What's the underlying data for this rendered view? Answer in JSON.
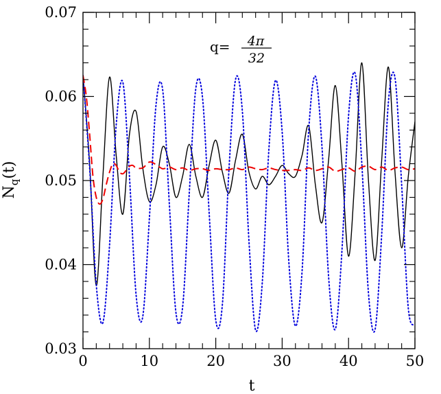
{
  "chart_data": {
    "type": "line",
    "xlabel": "t",
    "ylabel": {
      "base": "N",
      "subscript": "q",
      "suffix": "(t)"
    },
    "annotation": {
      "lhs": "q=",
      "numerator": "4π",
      "denominator": "32"
    },
    "xlim": [
      0,
      50
    ],
    "ylim": [
      0.03,
      0.07
    ],
    "x_ticks": [
      0,
      10,
      20,
      30,
      40,
      50
    ],
    "x_tick_labels": [
      "0",
      "10",
      "20",
      "30",
      "40",
      "50"
    ],
    "y_ticks": [
      0.03,
      0.04,
      0.05,
      0.06,
      0.07
    ],
    "y_tick_labels": [
      "0.03",
      "0.04",
      "0.05",
      "0.06",
      "0.07"
    ],
    "x_minor_step": 2,
    "y_minor_step": 0.002,
    "grid": false,
    "series": [
      {
        "style": "solid",
        "color": "#000000",
        "x": [
          0,
          1,
          2,
          3,
          4,
          5,
          6,
          7,
          8,
          9,
          10,
          11,
          12,
          13,
          14,
          15,
          16,
          17,
          18,
          19,
          20,
          21,
          22,
          23,
          24,
          25,
          26,
          27,
          28,
          29,
          30,
          31,
          32,
          33,
          34,
          35,
          36,
          37,
          38,
          39,
          40,
          41,
          42,
          43,
          44,
          45,
          46,
          47,
          48,
          49,
          50
        ],
        "y": [
          0.0625,
          0.052,
          0.0375,
          0.0505,
          0.0623,
          0.053,
          0.046,
          0.0555,
          0.0582,
          0.0515,
          0.0475,
          0.0495,
          0.054,
          0.052,
          0.048,
          0.0505,
          0.0543,
          0.0505,
          0.048,
          0.0518,
          0.0548,
          0.051,
          0.0485,
          0.0525,
          0.0555,
          0.051,
          0.049,
          0.0505,
          0.0495,
          0.0505,
          0.0518,
          0.0508,
          0.0505,
          0.053,
          0.0565,
          0.0495,
          0.045,
          0.0525,
          0.0613,
          0.052,
          0.041,
          0.051,
          0.064,
          0.05,
          0.0405,
          0.0525,
          0.0635,
          0.051,
          0.042,
          0.0505,
          0.057
        ]
      },
      {
        "style": "dotted",
        "color": "#0000dd",
        "x": [
          0,
          1,
          2,
          3,
          4,
          5,
          6,
          7,
          8,
          9,
          10,
          11,
          12,
          13,
          14,
          15,
          16,
          17,
          18,
          19,
          20,
          21,
          22,
          23,
          24,
          25,
          26,
          27,
          28,
          29,
          30,
          31,
          32,
          33,
          34,
          35,
          36,
          37,
          38,
          39,
          40,
          41,
          42,
          43,
          44,
          45,
          46,
          47,
          48,
          49,
          50
        ],
        "y": [
          0.0625,
          0.0516,
          0.0376,
          0.0331,
          0.0423,
          0.0566,
          0.0617,
          0.0505,
          0.0364,
          0.0338,
          0.0455,
          0.059,
          0.0608,
          0.0473,
          0.0343,
          0.0349,
          0.0484,
          0.061,
          0.0599,
          0.0462,
          0.0334,
          0.0353,
          0.0515,
          0.0621,
          0.0583,
          0.0428,
          0.0322,
          0.0378,
          0.0537,
          0.0619,
          0.0558,
          0.0404,
          0.0327,
          0.0392,
          0.056,
          0.0624,
          0.054,
          0.0385,
          0.0323,
          0.0416,
          0.0577,
          0.0627,
          0.052,
          0.0366,
          0.0323,
          0.0437,
          0.0593,
          0.0622,
          0.0495,
          0.0348,
          0.0328
        ]
      },
      {
        "style": "dashed",
        "color": "#ee0000",
        "x": [
          0,
          0.5,
          1,
          1.5,
          2,
          2.5,
          3,
          3.5,
          4,
          4.5,
          5,
          5.5,
          6,
          6.5,
          7,
          7.5,
          8,
          9,
          10,
          11,
          12,
          13,
          14,
          15,
          16,
          17,
          18,
          19,
          20,
          21,
          22,
          23,
          24,
          25,
          26,
          27,
          28,
          29,
          30,
          31,
          32,
          33,
          34,
          35,
          36,
          37,
          38,
          39,
          40,
          41,
          42,
          43,
          44,
          45,
          46,
          47,
          48,
          49,
          50
        ],
        "y": [
          0.0625,
          0.06,
          0.0555,
          0.0505,
          0.048,
          0.0472,
          0.0478,
          0.0495,
          0.051,
          0.052,
          0.0518,
          0.051,
          0.0508,
          0.0512,
          0.0517,
          0.0518,
          0.0515,
          0.0515,
          0.0522,
          0.0519,
          0.0514,
          0.0516,
          0.0513,
          0.0515,
          0.0512,
          0.0514,
          0.0514,
          0.0512,
          0.0514,
          0.0513,
          0.0513,
          0.0515,
          0.0513,
          0.0516,
          0.0514,
          0.0513,
          0.0515,
          0.0513,
          0.0512,
          0.0512,
          0.0513,
          0.0512,
          0.0515,
          0.0512,
          0.0514,
          0.0516,
          0.0511,
          0.0513,
          0.0515,
          0.0511,
          0.0516,
          0.0517,
          0.0513,
          0.0516,
          0.0512,
          0.0515,
          0.0516,
          0.0513,
          0.0514
        ]
      }
    ]
  }
}
